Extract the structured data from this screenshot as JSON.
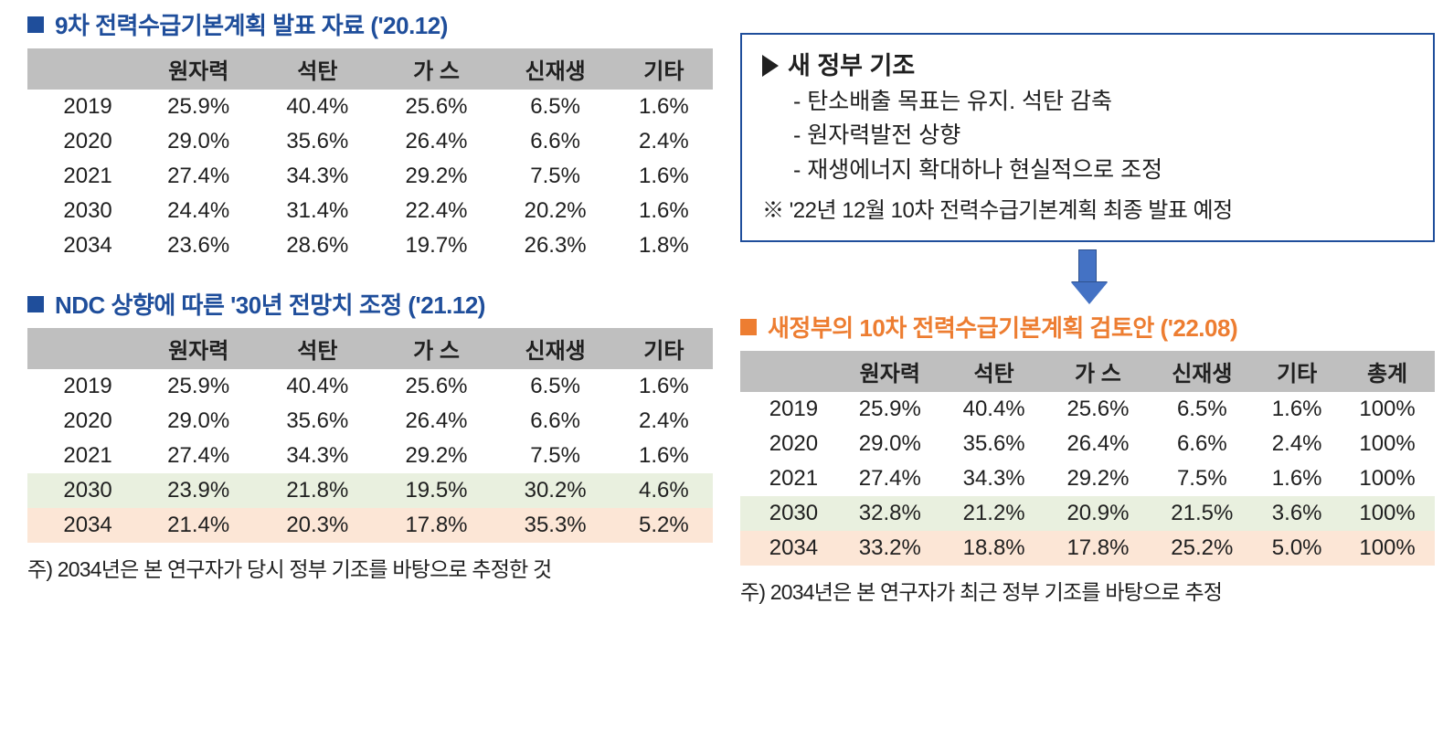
{
  "colors": {
    "blue": "#1f4e9b",
    "orange": "#ed7d31",
    "header_bg": "#bfbfbf",
    "hl_green": "#e9f0df",
    "hl_orange": "#fce6d6",
    "arrow_fill": "#4472c4",
    "arrow_border": "#2f528f",
    "text": "#202020",
    "bg": "#ffffff"
  },
  "table1": {
    "title": "9차 전력수급기본계획 발표 자료 ('20.12)",
    "columns": [
      "",
      "원자력",
      "석탄",
      "가 스",
      "신재생",
      "기타"
    ],
    "rows": [
      {
        "year": "2019",
        "vals": [
          "25.9%",
          "40.4%",
          "25.6%",
          "6.5%",
          "1.6%"
        ]
      },
      {
        "year": "2020",
        "vals": [
          "29.0%",
          "35.6%",
          "26.4%",
          "6.6%",
          "2.4%"
        ]
      },
      {
        "year": "2021",
        "vals": [
          "27.4%",
          "34.3%",
          "29.2%",
          "7.5%",
          "1.6%"
        ]
      },
      {
        "year": "2030",
        "vals": [
          "24.4%",
          "31.4%",
          "22.4%",
          "20.2%",
          "1.6%"
        ]
      },
      {
        "year": "2034",
        "vals": [
          "23.6%",
          "28.6%",
          "19.7%",
          "26.3%",
          "1.8%"
        ]
      }
    ]
  },
  "table2": {
    "title": "NDC 상향에 따른 '30년 전망치 조정 ('21.12)",
    "columns": [
      "",
      "원자력",
      "석탄",
      "가 스",
      "신재생",
      "기타"
    ],
    "rows": [
      {
        "year": "2019",
        "vals": [
          "25.9%",
          "40.4%",
          "25.6%",
          "6.5%",
          "1.6%"
        ]
      },
      {
        "year": "2020",
        "vals": [
          "29.0%",
          "35.6%",
          "26.4%",
          "6.6%",
          "2.4%"
        ]
      },
      {
        "year": "2021",
        "vals": [
          "27.4%",
          "34.3%",
          "29.2%",
          "7.5%",
          "1.6%"
        ]
      },
      {
        "year": "2030",
        "vals": [
          "23.9%",
          "21.8%",
          "19.5%",
          "30.2%",
          "4.6%"
        ],
        "hl": "green"
      },
      {
        "year": "2034",
        "vals": [
          "21.4%",
          "20.3%",
          "17.8%",
          "35.3%",
          "5.2%"
        ],
        "hl": "orange"
      }
    ],
    "note": "주) 2034년은 본 연구자가 당시 정부 기조를 바탕으로 추정한 것"
  },
  "policy_box": {
    "heading": "새 정부 기조",
    "items": [
      "- 탄소배출 목표는 유지. 석탄 감축",
      "- 원자력발전 상향",
      "- 재생에너지 확대하나 현실적으로 조정"
    ],
    "ref": "※ '22년 12월 10차 전력수급기본계획 최종 발표 예정"
  },
  "table3": {
    "title": "새정부의 10차 전력수급기본계획 검토안 ('22.08)",
    "columns": [
      "",
      "원자력",
      "석탄",
      "가 스",
      "신재생",
      "기타",
      "총계"
    ],
    "rows": [
      {
        "year": "2019",
        "vals": [
          "25.9%",
          "40.4%",
          "25.6%",
          "6.5%",
          "1.6%",
          "100%"
        ]
      },
      {
        "year": "2020",
        "vals": [
          "29.0%",
          "35.6%",
          "26.4%",
          "6.6%",
          "2.4%",
          "100%"
        ]
      },
      {
        "year": "2021",
        "vals": [
          "27.4%",
          "34.3%",
          "29.2%",
          "7.5%",
          "1.6%",
          "100%"
        ]
      },
      {
        "year": "2030",
        "vals": [
          "32.8%",
          "21.2%",
          "20.9%",
          "21.5%",
          "3.6%",
          "100%"
        ],
        "hl": "green"
      },
      {
        "year": "2034",
        "vals": [
          "33.2%",
          "18.8%",
          "17.8%",
          "25.2%",
          "5.0%",
          "100%"
        ],
        "hl": "orange"
      }
    ],
    "note": "주) 2034년은 본 연구자가 최근 정부 기조를 바탕으로 추정"
  }
}
